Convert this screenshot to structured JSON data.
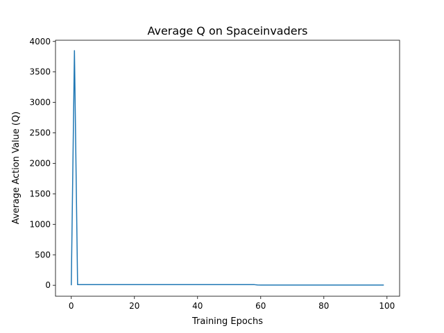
{
  "chart_data": {
    "type": "line",
    "title": "Average Q on Spaceinvaders",
    "xlabel": "Training Epochs",
    "ylabel": "Average Action Value (Q)",
    "xlim": [
      -5,
      104
    ],
    "ylim": [
      -180,
      4020
    ],
    "xticks": [
      0,
      20,
      40,
      60,
      80,
      100
    ],
    "yticks": [
      0,
      500,
      1000,
      1500,
      2000,
      2500,
      3000,
      3500,
      4000
    ],
    "grid": false,
    "line_color": "#1f77b4",
    "series": [
      {
        "x": [
          0,
          1,
          2,
          3,
          4,
          5,
          6,
          7,
          8,
          9,
          10,
          11,
          12,
          13,
          14,
          15,
          16,
          17,
          18,
          19,
          20,
          21,
          22,
          23,
          24,
          25,
          26,
          27,
          28,
          29,
          30,
          31,
          32,
          33,
          34,
          35,
          36,
          37,
          38,
          39,
          40,
          41,
          42,
          43,
          44,
          45,
          46,
          47,
          48,
          49,
          50,
          51,
          52,
          53,
          54,
          55,
          56,
          57,
          58,
          59,
          60,
          61,
          62,
          63,
          64,
          65,
          66,
          67,
          68,
          69,
          70,
          71,
          72,
          73,
          74,
          75,
          76,
          77,
          78,
          79,
          80,
          81,
          82,
          83,
          84,
          85,
          86,
          87,
          88,
          89,
          90,
          91,
          92,
          93,
          94,
          95,
          96,
          97,
          98,
          99
        ],
        "values": [
          0,
          3850,
          10,
          10,
          10,
          10,
          11,
          11,
          11,
          11,
          11,
          11,
          11,
          11,
          11,
          11,
          11,
          11,
          11,
          11,
          11,
          11,
          11,
          11,
          11,
          11,
          11,
          11,
          11,
          11,
          11,
          11,
          11,
          11,
          11,
          11,
          11,
          11,
          11,
          11,
          11,
          11,
          11,
          11,
          11,
          11,
          11,
          11,
          11,
          11,
          11,
          11,
          11,
          11,
          11,
          11,
          11,
          11,
          10,
          5,
          4,
          4,
          4,
          4,
          4,
          4,
          4,
          4,
          4,
          4,
          4,
          4,
          4,
          4,
          4,
          4,
          4,
          4,
          4,
          4,
          4,
          4,
          4,
          4,
          4,
          4,
          4,
          4,
          4,
          4,
          4,
          4,
          4,
          4,
          4,
          4,
          4,
          4,
          4,
          4
        ]
      }
    ]
  }
}
